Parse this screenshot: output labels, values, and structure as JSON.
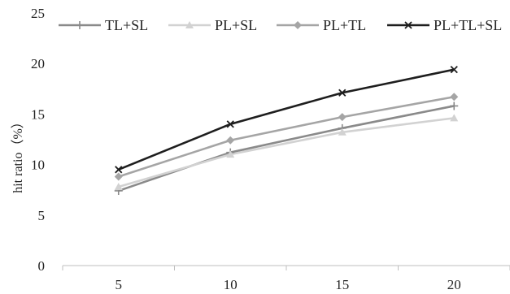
{
  "chart_data": {
    "type": "line",
    "title": "",
    "xlabel": "",
    "ylabel": "hit ratio（%）",
    "categories": [
      "5",
      "10",
      "15",
      "20"
    ],
    "x": [
      5,
      10,
      15,
      20
    ],
    "ylim": [
      0,
      25
    ],
    "yticks": [
      0,
      5,
      10,
      15,
      20,
      25
    ],
    "grid": false,
    "legend_position": "top",
    "series": [
      {
        "name": "TL+SL",
        "values": [
          7.4,
          11.2,
          13.6,
          15.8
        ],
        "color": "#8a8a8a",
        "marker": "plus"
      },
      {
        "name": "PL+SL",
        "values": [
          7.8,
          11.0,
          13.2,
          14.6
        ],
        "color": "#d2d2d2",
        "marker": "triangle"
      },
      {
        "name": "PL+TL",
        "values": [
          8.8,
          12.4,
          14.7,
          16.7
        ],
        "color": "#a5a5a5",
        "marker": "diamond"
      },
      {
        "name": "PL+TL+SL",
        "values": [
          9.5,
          14.0,
          17.1,
          19.4
        ],
        "color": "#1e1e1e",
        "marker": "x"
      }
    ]
  }
}
